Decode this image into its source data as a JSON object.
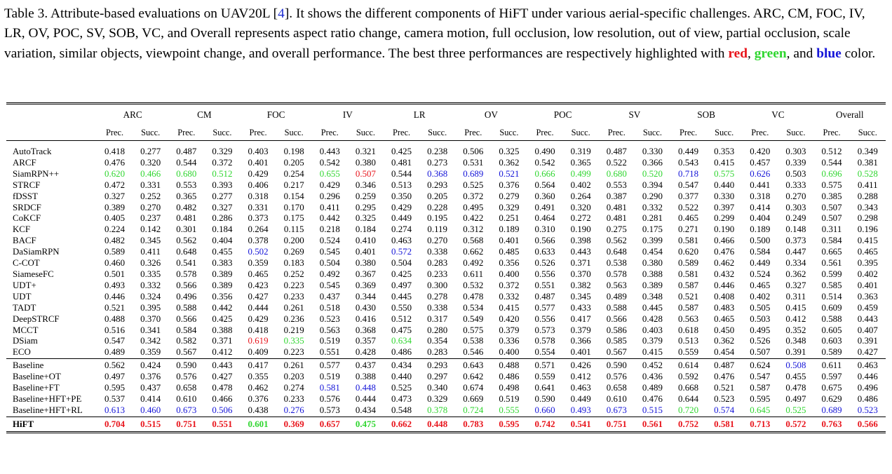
{
  "caption": {
    "part1": "Table 3. Attribute-based evaluations on UAV20L [",
    "cite": "4",
    "part2": "]. It shows the different components of HiFT under various aerial-specific challenges. ARC, CM, FOC, IV, LR, OV, POC, SV, SOB, VC, and Overall represents aspect ratio change, camera motion, full occlusion, low resolution, out of view, partial occlusion, scale variation, similar objects, viewpoint change, and overall performance. The best three performances are respectively highlighted with ",
    "red_word": "red",
    "sep1": ", ",
    "green_word": "green",
    "sep2": ", and ",
    "blue_word": "blue",
    "part3": " color.",
    "colors": {
      "red": "#e8141b",
      "green": "#2fd62f",
      "blue": "#1414d8",
      "citation": "#1f2fd0"
    }
  },
  "table": {
    "groups": [
      "ARC",
      "CM",
      "FOC",
      "IV",
      "LR",
      "OV",
      "POC",
      "SV",
      "SOB",
      "VC",
      "Overall"
    ],
    "sub_labels": [
      "Prec.",
      "Succ."
    ],
    "sections": [
      [
        {
          "name": "AutoTrack",
          "values": [
            "0.418",
            "0.277",
            "0.487",
            "0.329",
            "0.403",
            "0.198",
            "0.443",
            "0.321",
            "0.425",
            "0.238",
            "0.506",
            "0.325",
            "0.490",
            "0.319",
            "0.487",
            "0.330",
            "0.449",
            "0.353",
            "0.420",
            "0.303",
            "0.512",
            "0.349"
          ]
        },
        {
          "name": "ARCF",
          "values": [
            "0.476",
            "0.320",
            "0.544",
            "0.372",
            "0.401",
            "0.205",
            "0.542",
            "0.380",
            "0.481",
            "0.273",
            "0.531",
            "0.362",
            "0.542",
            "0.365",
            "0.522",
            "0.366",
            "0.543",
            "0.415",
            "0.457",
            "0.339",
            "0.544",
            "0.381"
          ]
        },
        {
          "name": "SiamRPN++",
          "values": [
            "0.620",
            "0.466",
            "0.680",
            "0.512",
            "0.429",
            "0.254",
            "0.655",
            "0.507",
            "0.544",
            "0.368",
            "0.689",
            "0.521",
            "0.666",
            "0.499",
            "0.680",
            "0.520",
            "0.718",
            "0.575",
            "0.626",
            "0.503",
            "0.696",
            "0.528"
          ],
          "colors": [
            "g",
            "g",
            "g",
            "g",
            "",
            "",
            "g",
            "r",
            "",
            "b",
            "b",
            "b",
            "g",
            "g",
            "g",
            "g",
            "b",
            "g",
            "b",
            "",
            "g",
            "g"
          ]
        },
        {
          "name": "STRCF",
          "values": [
            "0.472",
            "0.331",
            "0.553",
            "0.393",
            "0.406",
            "0.217",
            "0.429",
            "0.346",
            "0.513",
            "0.293",
            "0.525",
            "0.376",
            "0.564",
            "0.402",
            "0.553",
            "0.394",
            "0.547",
            "0.440",
            "0.441",
            "0.333",
            "0.575",
            "0.411"
          ]
        },
        {
          "name": "fDSST",
          "values": [
            "0.327",
            "0.252",
            "0.365",
            "0.277",
            "0.318",
            "0.154",
            "0.296",
            "0.259",
            "0.350",
            "0.205",
            "0.372",
            "0.279",
            "0.360",
            "0.264",
            "0.387",
            "0.290",
            "0.377",
            "0.330",
            "0.318",
            "0.270",
            "0.385",
            "0.288"
          ]
        },
        {
          "name": "SRDCF",
          "values": [
            "0.389",
            "0.270",
            "0.482",
            "0.327",
            "0.331",
            "0.170",
            "0.411",
            "0.295",
            "0.429",
            "0.228",
            "0.495",
            "0.329",
            "0.491",
            "0.320",
            "0.481",
            "0.332",
            "0.522",
            "0.397",
            "0.414",
            "0.303",
            "0.507",
            "0.343"
          ]
        },
        {
          "name": "CoKCF",
          "values": [
            "0.405",
            "0.237",
            "0.481",
            "0.286",
            "0.373",
            "0.175",
            "0.442",
            "0.325",
            "0.449",
            "0.195",
            "0.422",
            "0.251",
            "0.464",
            "0.272",
            "0.481",
            "0.281",
            "0.465",
            "0.299",
            "0.404",
            "0.249",
            "0.507",
            "0.298"
          ]
        },
        {
          "name": "KCF",
          "values": [
            "0.224",
            "0.142",
            "0.301",
            "0.184",
            "0.264",
            "0.115",
            "0.218",
            "0.184",
            "0.274",
            "0.119",
            "0.312",
            "0.189",
            "0.310",
            "0.190",
            "0.275",
            "0.175",
            "0.271",
            "0.190",
            "0.189",
            "0.148",
            "0.311",
            "0.196"
          ]
        },
        {
          "name": "BACF",
          "values": [
            "0.482",
            "0.345",
            "0.562",
            "0.404",
            "0.378",
            "0.200",
            "0.524",
            "0.410",
            "0.463",
            "0.270",
            "0.568",
            "0.401",
            "0.566",
            "0.398",
            "0.562",
            "0.399",
            "0.581",
            "0.466",
            "0.500",
            "0.373",
            "0.584",
            "0.415"
          ]
        },
        {
          "name": "DaSiamRPN",
          "values": [
            "0.589",
            "0.411",
            "0.648",
            "0.455",
            "0.502",
            "0.269",
            "0.545",
            "0.401",
            "0.572",
            "0.338",
            "0.662",
            "0.485",
            "0.633",
            "0.443",
            "0.648",
            "0.454",
            "0.620",
            "0.476",
            "0.584",
            "0.447",
            "0.665",
            "0.465"
          ],
          "colors": [
            "",
            "",
            "",
            "",
            "b",
            "",
            "",
            "",
            "b",
            "",
            "",
            "",
            "",
            "",
            "",
            "",
            "",
            "",
            "",
            "",
            "",
            ""
          ]
        },
        {
          "name": "C-COT",
          "values": [
            "0.460",
            "0.326",
            "0.541",
            "0.383",
            "0.359",
            "0.183",
            "0.504",
            "0.380",
            "0.504",
            "0.283",
            "0.492",
            "0.356",
            "0.526",
            "0.371",
            "0.538",
            "0.380",
            "0.589",
            "0.462",
            "0.449",
            "0.334",
            "0.561",
            "0.395"
          ]
        },
        {
          "name": "SiameseFC",
          "values": [
            "0.501",
            "0.335",
            "0.578",
            "0.389",
            "0.465",
            "0.252",
            "0.492",
            "0.367",
            "0.425",
            "0.233",
            "0.611",
            "0.400",
            "0.556",
            "0.370",
            "0.578",
            "0.388",
            "0.581",
            "0.432",
            "0.524",
            "0.362",
            "0.599",
            "0.402"
          ]
        },
        {
          "name": "UDT+",
          "values": [
            "0.493",
            "0.332",
            "0.566",
            "0.389",
            "0.423",
            "0.223",
            "0.545",
            "0.369",
            "0.497",
            "0.300",
            "0.532",
            "0.372",
            "0.551",
            "0.382",
            "0.563",
            "0.389",
            "0.587",
            "0.446",
            "0.465",
            "0.327",
            "0.585",
            "0.401"
          ]
        },
        {
          "name": "UDT",
          "values": [
            "0.446",
            "0.324",
            "0.496",
            "0.356",
            "0.427",
            "0.233",
            "0.437",
            "0.344",
            "0.445",
            "0.278",
            "0.478",
            "0.332",
            "0.487",
            "0.345",
            "0.489",
            "0.348",
            "0.521",
            "0.408",
            "0.402",
            "0.311",
            "0.514",
            "0.363"
          ]
        },
        {
          "name": "TADT",
          "values": [
            "0.521",
            "0.395",
            "0.588",
            "0.442",
            "0.444",
            "0.261",
            "0.518",
            "0.430",
            "0.550",
            "0.338",
            "0.534",
            "0.415",
            "0.577",
            "0.433",
            "0.588",
            "0.445",
            "0.587",
            "0.483",
            "0.505",
            "0.415",
            "0.609",
            "0.459"
          ]
        },
        {
          "name": "DeepSTRCF",
          "values": [
            "0.488",
            "0.370",
            "0.566",
            "0.425",
            "0.429",
            "0.236",
            "0.523",
            "0.416",
            "0.512",
            "0.317",
            "0.549",
            "0.420",
            "0.556",
            "0.417",
            "0.566",
            "0.428",
            "0.563",
            "0.465",
            "0.503",
            "0.412",
            "0.588",
            "0.443"
          ]
        },
        {
          "name": "MCCT",
          "values": [
            "0.516",
            "0.341",
            "0.584",
            "0.388",
            "0.418",
            "0.219",
            "0.563",
            "0.368",
            "0.475",
            "0.280",
            "0.575",
            "0.379",
            "0.573",
            "0.379",
            "0.586",
            "0.403",
            "0.618",
            "0.450",
            "0.495",
            "0.352",
            "0.605",
            "0.407"
          ]
        },
        {
          "name": "DSiam",
          "values": [
            "0.547",
            "0.342",
            "0.582",
            "0.371",
            "0.619",
            "0.335",
            "0.519",
            "0.357",
            "0.634",
            "0.354",
            "0.538",
            "0.336",
            "0.578",
            "0.366",
            "0.585",
            "0.379",
            "0.513",
            "0.362",
            "0.526",
            "0.348",
            "0.603",
            "0.391"
          ],
          "colors": [
            "",
            "",
            "",
            "",
            "r",
            "g",
            "",
            "",
            "g",
            "",
            "",
            "",
            "",
            "",
            "",
            "",
            "",
            "",
            "",
            "",
            "",
            ""
          ]
        },
        {
          "name": "ECO",
          "values": [
            "0.489",
            "0.359",
            "0.567",
            "0.412",
            "0.409",
            "0.223",
            "0.551",
            "0.428",
            "0.486",
            "0.283",
            "0.546",
            "0.400",
            "0.554",
            "0.401",
            "0.567",
            "0.415",
            "0.559",
            "0.454",
            "0.507",
            "0.391",
            "0.589",
            "0.427"
          ]
        }
      ],
      [
        {
          "name": "Baseline",
          "values": [
            "0.562",
            "0.424",
            "0.590",
            "0.443",
            "0.417",
            "0.261",
            "0.577",
            "0.437",
            "0.434",
            "0.293",
            "0.643",
            "0.488",
            "0.571",
            "0.426",
            "0.590",
            "0.452",
            "0.614",
            "0.487",
            "0.624",
            "0.508",
            "0.611",
            "0.463"
          ],
          "colors": [
            "",
            "",
            "",
            "",
            "",
            "",
            "",
            "",
            "",
            "",
            "",
            "",
            "",
            "",
            "",
            "",
            "",
            "",
            "",
            "b",
            "",
            ""
          ]
        },
        {
          "name": "Baseline+OT",
          "values": [
            "0.497",
            "0.376",
            "0.576",
            "0.427",
            "0.355",
            "0.203",
            "0.519",
            "0.388",
            "0.440",
            "0.297",
            "0.642",
            "0.486",
            "0.559",
            "0.412",
            "0.576",
            "0.436",
            "0.592",
            "0.476",
            "0.547",
            "0.455",
            "0.597",
            "0.446"
          ]
        },
        {
          "name": "Baseline+FT",
          "values": [
            "0.595",
            "0.437",
            "0.658",
            "0.478",
            "0.462",
            "0.274",
            "0.581",
            "0.448",
            "0.525",
            "0.340",
            "0.674",
            "0.498",
            "0.641",
            "0.463",
            "0.658",
            "0.489",
            "0.668",
            "0.521",
            "0.587",
            "0.478",
            "0.675",
            "0.496"
          ],
          "colors": [
            "",
            "",
            "",
            "",
            "",
            "",
            "b",
            "b",
            "",
            "",
            "",
            "",
            "",
            "",
            "",
            "",
            "",
            "",
            "",
            "",
            "",
            ""
          ]
        },
        {
          "name": "Baseline+HFT+PE",
          "values": [
            "0.537",
            "0.414",
            "0.610",
            "0.466",
            "0.376",
            "0.233",
            "0.576",
            "0.444",
            "0.473",
            "0.329",
            "0.669",
            "0.519",
            "0.590",
            "0.449",
            "0.610",
            "0.476",
            "0.644",
            "0.523",
            "0.595",
            "0.497",
            "0.629",
            "0.486"
          ]
        },
        {
          "name": "Baseline+HFT+RL",
          "values": [
            "0.613",
            "0.460",
            "0.673",
            "0.506",
            "0.438",
            "0.276",
            "0.573",
            "0.434",
            "0.548",
            "0.378",
            "0.724",
            "0.555",
            "0.660",
            "0.493",
            "0.673",
            "0.515",
            "0.720",
            "0.574",
            "0.645",
            "0.525",
            "0.689",
            "0.523"
          ],
          "colors": [
            "b",
            "b",
            "b",
            "b",
            "",
            "b",
            "",
            "",
            "",
            "g",
            "g",
            "g",
            "b",
            "b",
            "b",
            "b",
            "g",
            "b",
            "g",
            "g",
            "b",
            "b"
          ]
        }
      ]
    ],
    "final_row": {
      "name": "HiFT",
      "values": [
        "0.704",
        "0.515",
        "0.751",
        "0.551",
        "0.601",
        "0.369",
        "0.657",
        "0.475",
        "0.662",
        "0.448",
        "0.783",
        "0.595",
        "0.742",
        "0.541",
        "0.751",
        "0.561",
        "0.752",
        "0.581",
        "0.713",
        "0.572",
        "0.763",
        "0.566"
      ],
      "colors": [
        "r",
        "r",
        "r",
        "r",
        "g",
        "r",
        "r",
        "g",
        "r",
        "r",
        "r",
        "r",
        "r",
        "r",
        "r",
        "r",
        "r",
        "r",
        "r",
        "r",
        "r",
        "r"
      ]
    }
  }
}
